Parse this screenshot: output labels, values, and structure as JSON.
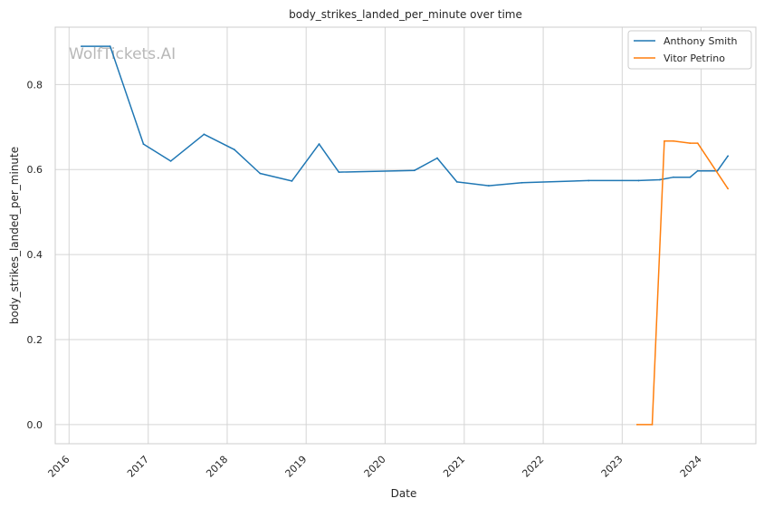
{
  "chart_data": {
    "type": "line",
    "title": "body_strikes_landed_per_minute over time",
    "xlabel": "Date",
    "ylabel": "body_strikes_landed_per_minute",
    "watermark": "WolfTickets.AI",
    "x_ticks": [
      "2016",
      "2017",
      "2018",
      "2019",
      "2020",
      "2021",
      "2022",
      "2023",
      "2024"
    ],
    "y_ticks": [
      "0.0",
      "0.2",
      "0.4",
      "0.6",
      "0.8"
    ],
    "xlim": [
      "2015-10-29",
      "2024-09-10"
    ],
    "ylim": [
      -0.045,
      0.935
    ],
    "grid": true,
    "legend_position": "top-right",
    "series": [
      {
        "name": "Anthony Smith",
        "color": "#1f77b4",
        "points": [
          [
            "2016-02-27",
            0.89
          ],
          [
            "2016-07-09",
            0.89
          ],
          [
            "2016-12-10",
            0.66
          ],
          [
            "2017-04-15",
            0.62
          ],
          [
            "2017-09-16",
            0.683
          ],
          [
            "2018-02-03",
            0.647
          ],
          [
            "2018-06-02",
            0.591
          ],
          [
            "2018-10-27",
            0.573
          ],
          [
            "2019-03-02",
            0.66
          ],
          [
            "2019-06-01",
            0.594
          ],
          [
            "2020-05-16",
            0.598
          ],
          [
            "2020-08-29",
            0.627
          ],
          [
            "2020-11-28",
            0.571
          ],
          [
            "2021-04-24",
            0.562
          ],
          [
            "2021-09-25",
            0.569
          ],
          [
            "2022-07-30",
            0.574
          ],
          [
            "2023-03-18",
            0.574
          ],
          [
            "2023-06-24",
            0.576
          ],
          [
            "2023-08-26",
            0.582
          ],
          [
            "2023-11-11",
            0.582
          ],
          [
            "2023-12-16",
            0.597
          ],
          [
            "2024-03-16",
            0.597
          ],
          [
            "2024-05-04",
            0.632
          ]
        ]
      },
      {
        "name": "Vitor Petrino",
        "color": "#ff7f0e",
        "points": [
          [
            "2023-03-11",
            0.0
          ],
          [
            "2023-05-20",
            0.0
          ],
          [
            "2023-07-15",
            0.667
          ],
          [
            "2023-08-26",
            0.667
          ],
          [
            "2023-11-11",
            0.662
          ],
          [
            "2023-12-16",
            0.662
          ],
          [
            "2024-05-04",
            0.555
          ]
        ]
      }
    ]
  }
}
